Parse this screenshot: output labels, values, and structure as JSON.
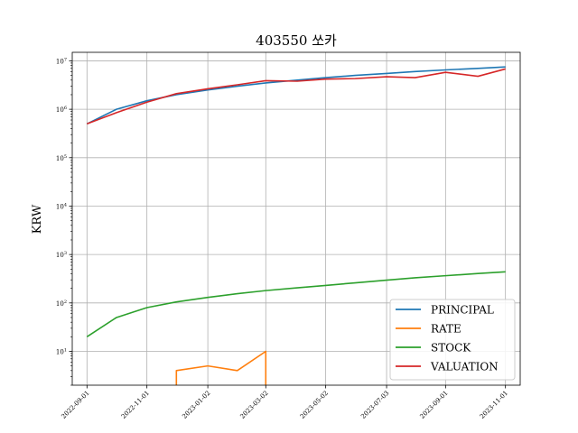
{
  "chart_data": {
    "type": "line",
    "title": "403550 쏘카",
    "xlabel": "",
    "ylabel": "KRW",
    "yscale": "log",
    "ylim": [
      2,
      15000000
    ],
    "xlim": [
      "2022-08-17",
      "2023-11-16"
    ],
    "grid": true,
    "legend_position": "lower-right",
    "x_ticks": [
      "2022-09-01",
      "2022-11-01",
      "2023-01-02",
      "2023-03-02",
      "2023-05-02",
      "2023-07-03",
      "2023-09-01",
      "2023-11-01"
    ],
    "y_ticks": [
      {
        "value": 10,
        "base": "10",
        "exp": "1"
      },
      {
        "value": 100,
        "base": "10",
        "exp": "2"
      },
      {
        "value": 1000,
        "base": "10",
        "exp": "3"
      },
      {
        "value": 10000,
        "base": "10",
        "exp": "4"
      },
      {
        "value": 100000,
        "base": "10",
        "exp": "5"
      },
      {
        "value": 1000000,
        "base": "10",
        "exp": "6"
      },
      {
        "value": 10000000,
        "base": "10",
        "exp": "7"
      }
    ],
    "series": [
      {
        "name": "PRINCIPAL",
        "color": "#1f77b4",
        "points": [
          [
            "2022-09-01",
            500000
          ],
          [
            "2022-10-01",
            1000000
          ],
          [
            "2022-11-01",
            1500000
          ],
          [
            "2022-12-01",
            2000000
          ],
          [
            "2023-01-02",
            2500000
          ],
          [
            "2023-02-01",
            3000000
          ],
          [
            "2023-03-02",
            3500000
          ],
          [
            "2023-04-03",
            4000000
          ],
          [
            "2023-05-02",
            4500000
          ],
          [
            "2023-06-01",
            5000000
          ],
          [
            "2023-07-03",
            5500000
          ],
          [
            "2023-08-01",
            6000000
          ],
          [
            "2023-09-01",
            6500000
          ],
          [
            "2023-10-04",
            7000000
          ],
          [
            "2023-11-01",
            7500000
          ]
        ]
      },
      {
        "name": "RATE",
        "color": "#ff7f0e",
        "points": [
          [
            "2022-12-01",
            0
          ],
          [
            "2022-12-01",
            4
          ],
          [
            "2023-01-02",
            5
          ],
          [
            "2023-02-01",
            4
          ],
          [
            "2023-03-02",
            10
          ],
          [
            "2023-03-02",
            0
          ]
        ]
      },
      {
        "name": "STOCK",
        "color": "#2ca02c",
        "points": [
          [
            "2022-09-01",
            20
          ],
          [
            "2022-10-01",
            50
          ],
          [
            "2022-11-01",
            80
          ],
          [
            "2022-12-01",
            105
          ],
          [
            "2023-01-02",
            130
          ],
          [
            "2023-02-01",
            155
          ],
          [
            "2023-03-02",
            180
          ],
          [
            "2023-04-03",
            205
          ],
          [
            "2023-05-02",
            230
          ],
          [
            "2023-06-01",
            260
          ],
          [
            "2023-07-03",
            295
          ],
          [
            "2023-08-01",
            330
          ],
          [
            "2023-09-01",
            365
          ],
          [
            "2023-10-04",
            405
          ],
          [
            "2023-11-01",
            440
          ]
        ]
      },
      {
        "name": "VALUATION",
        "color": "#d62728",
        "points": [
          [
            "2022-09-01",
            500000
          ],
          [
            "2022-10-01",
            850000
          ],
          [
            "2022-11-01",
            1400000
          ],
          [
            "2022-12-01",
            2100000
          ],
          [
            "2023-01-02",
            2650000
          ],
          [
            "2023-02-01",
            3200000
          ],
          [
            "2023-03-02",
            3900000
          ],
          [
            "2023-04-03",
            3800000
          ],
          [
            "2023-05-02",
            4200000
          ],
          [
            "2023-06-01",
            4300000
          ],
          [
            "2023-07-03",
            4700000
          ],
          [
            "2023-08-01",
            4500000
          ],
          [
            "2023-09-01",
            5800000
          ],
          [
            "2023-10-04",
            4800000
          ],
          [
            "2023-11-01",
            6800000
          ]
        ]
      }
    ]
  }
}
